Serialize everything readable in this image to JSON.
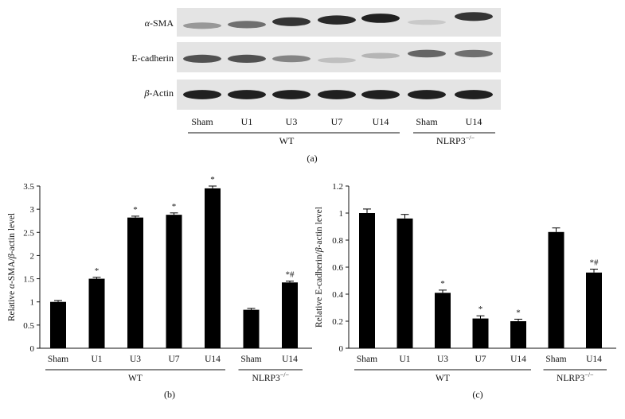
{
  "panel_a": {
    "label": "(a)",
    "row_labels": [
      {
        "prefix": "α",
        "text": "-SMA",
        "italic_prefix": true
      },
      {
        "prefix": "",
        "text": "E-cadherin",
        "italic_prefix": false
      },
      {
        "prefix": "β",
        "text": "-Actin",
        "italic_prefix": true
      }
    ],
    "lanes": [
      "Sham",
      "U1",
      "U3",
      "U7",
      "U14",
      "Sham",
      "U14"
    ],
    "groups": [
      {
        "name": "WT",
        "lanes": [
          0,
          4
        ]
      },
      {
        "name": "NLRP3",
        "superscript": "−/−",
        "lanes": [
          5,
          6
        ]
      }
    ],
    "band_intensity": {
      "alpha_sma": [
        0.35,
        0.55,
        0.85,
        0.9,
        0.95,
        0.1,
        0.85
      ],
      "e_cadherin": [
        0.7,
        0.7,
        0.45,
        0.15,
        0.2,
        0.6,
        0.55
      ],
      "beta_actin": [
        0.95,
        0.95,
        0.95,
        0.95,
        0.95,
        0.95,
        0.95
      ]
    }
  },
  "chart_data": [
    {
      "type": "bar",
      "panel_label": "(b)",
      "categories": [
        "Sham",
        "U1",
        "U3",
        "U7",
        "U14",
        "Sham",
        "U14"
      ],
      "values": [
        1.0,
        1.5,
        2.82,
        2.88,
        3.45,
        0.83,
        1.42
      ],
      "errors": [
        0.03,
        0.03,
        0.03,
        0.04,
        0.05,
        0.03,
        0.03
      ],
      "annotations": [
        "",
        "*",
        "*",
        "*",
        "*",
        "",
        "*#"
      ],
      "ylabel_prefix": "Relative ",
      "ylabel_greek1": "α",
      "ylabel_mid": "-SMA/",
      "ylabel_greek2": "β",
      "ylabel_suffix": "-actin level",
      "ylim": [
        0,
        3.5
      ],
      "yticks": [
        "0",
        "0.5",
        "1",
        "1.5",
        "2",
        "2.5",
        "3",
        "3.5"
      ],
      "groups": [
        {
          "name": "WT",
          "range": [
            0,
            4
          ]
        },
        {
          "name": "NLRP3",
          "superscript": "−/−",
          "range": [
            5,
            6
          ]
        }
      ]
    },
    {
      "type": "bar",
      "panel_label": "(c)",
      "categories": [
        "Sham",
        "U1",
        "U3",
        "U7",
        "U14",
        "Sham",
        "U14"
      ],
      "values": [
        1.0,
        0.96,
        0.41,
        0.22,
        0.2,
        0.86,
        0.56
      ],
      "errors": [
        0.03,
        0.03,
        0.02,
        0.02,
        0.015,
        0.03,
        0.025
      ],
      "annotations": [
        "",
        "",
        "*",
        "*",
        "*",
        "",
        "*#"
      ],
      "ylabel_prefix": "Relative E-cadherin/",
      "ylabel_greek1": "",
      "ylabel_mid": "",
      "ylabel_greek2": "β",
      "ylabel_suffix": "-actin level",
      "ylim": [
        0,
        1.2
      ],
      "yticks": [
        "0",
        "0.2",
        "0.4",
        "0.6",
        "0.8",
        "1",
        "1.2"
      ],
      "groups": [
        {
          "name": "WT",
          "range": [
            0,
            4
          ]
        },
        {
          "name": "NLRP3",
          "superscript": "−/−",
          "range": [
            5,
            6
          ]
        }
      ]
    }
  ]
}
